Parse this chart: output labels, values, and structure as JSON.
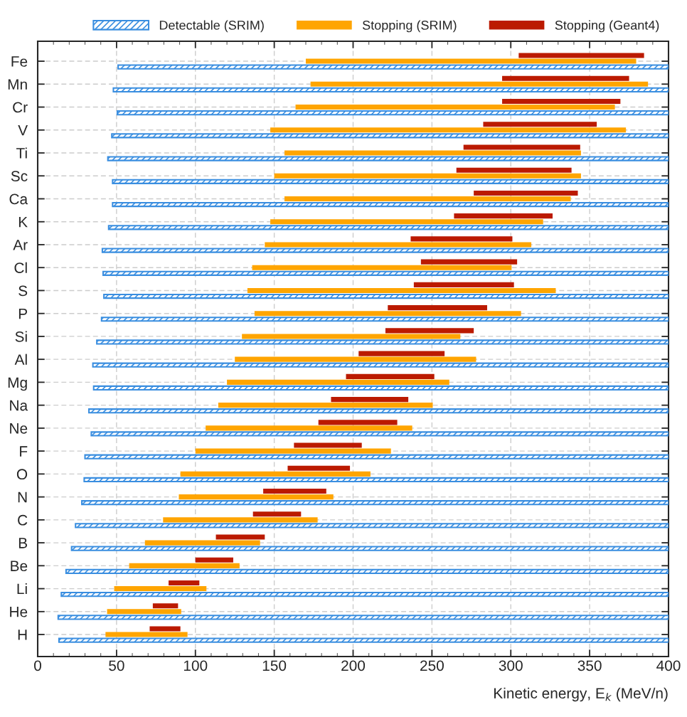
{
  "chart_data": {
    "type": "bar",
    "orientation": "horizontal",
    "xlabel": "Kinetic energy, E$_{k}$ (MeV/n)",
    "categories": [
      "Fe",
      "Mn",
      "Cr",
      "V",
      "Ti",
      "Sc",
      "Ca",
      "K",
      "Ar",
      "Cl",
      "S",
      "P",
      "Si",
      "Al",
      "Mg",
      "Na",
      "Ne",
      "F",
      "O",
      "N",
      "C",
      "B",
      "Be",
      "Li",
      "He",
      "H"
    ],
    "series": [
      {
        "name": "Detectable (SRIM)",
        "color": "#3a8ee0",
        "base": [
          51,
          48,
          50.5,
          47,
          44.5,
          47.5,
          47.5,
          45,
          41,
          41.5,
          42,
          40.5,
          37.5,
          35,
          35.5,
          32.5,
          34,
          30,
          29.5,
          28,
          24,
          21.5,
          18,
          15,
          13,
          13.5
        ],
        "values": [
          349,
          352,
          349.5,
          353,
          355.5,
          352.5,
          352.5,
          355,
          359,
          358.5,
          358,
          359.5,
          362.5,
          365,
          364.5,
          367.5,
          366,
          370,
          370.5,
          372,
          376,
          378.5,
          382,
          385,
          387,
          386.5
        ]
      },
      {
        "name": "Stopping (SRIM)",
        "color": "#ffa500",
        "base": [
          170,
          173,
          163.5,
          147.5,
          156.5,
          150,
          156.5,
          147.5,
          144,
          136,
          133,
          137.5,
          129.5,
          125,
          120,
          114.5,
          106.5,
          100,
          90.5,
          89.5,
          79.5,
          68,
          58,
          48.5,
          44,
          43
        ],
        "values": [
          209.5,
          214,
          202.5,
          225.5,
          188,
          194.5,
          181.5,
          173,
          169,
          164.5,
          195.5,
          169,
          138.5,
          153,
          141,
          136,
          131,
          124,
          120.5,
          98,
          98,
          73,
          70,
          58.5,
          47,
          52
        ]
      },
      {
        "name": "Stopping (Geant4)",
        "color": "#bb1a00",
        "base": [
          305,
          294.5,
          294.5,
          282.5,
          270,
          265.5,
          276.5,
          264,
          236.5,
          243,
          238.5,
          222,
          220.5,
          203.5,
          195.5,
          186,
          178,
          162.5,
          158.5,
          143,
          136.5,
          113,
          100,
          83,
          73,
          71
        ],
        "values": [
          79.5,
          80.5,
          75,
          72,
          74,
          73,
          66,
          62.5,
          64.5,
          61,
          63.5,
          63,
          56,
          54.5,
          56,
          49,
          50,
          43,
          39.5,
          40,
          30.5,
          31,
          24,
          19.5,
          16,
          19.5
        ]
      }
    ],
    "xlim": [
      0,
      400
    ],
    "xticks": [
      0,
      50,
      100,
      150,
      200,
      250,
      300,
      350,
      400
    ],
    "grid": true,
    "legend": "top"
  }
}
